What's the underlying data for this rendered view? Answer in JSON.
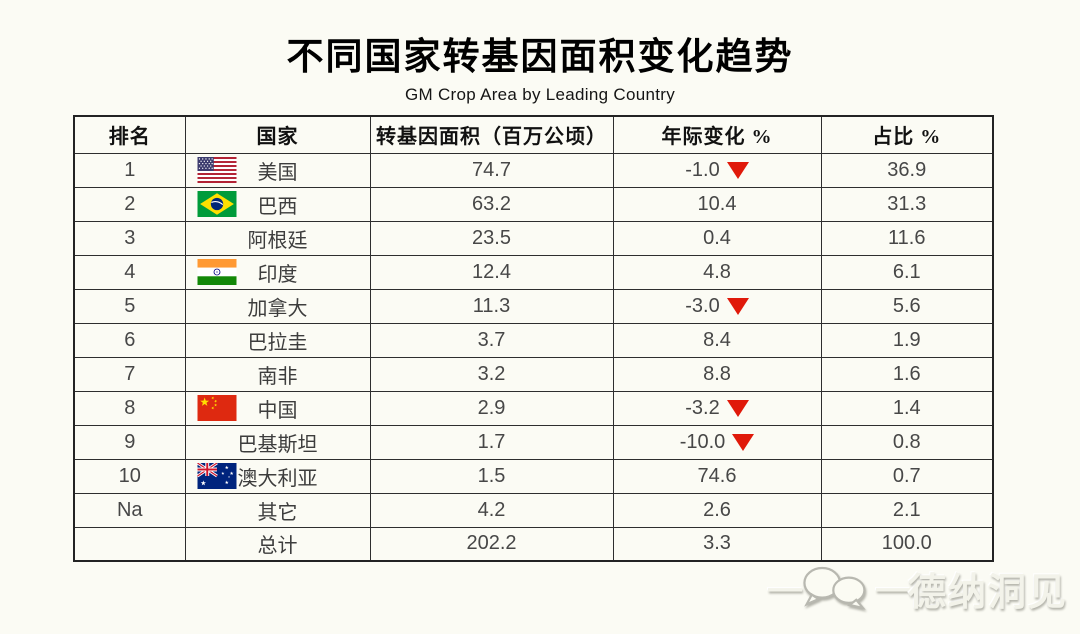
{
  "page": {
    "title": "不同国家转基因面积变化趋势",
    "subtitle": "GM Crop Area by Leading Country",
    "watermark": "德纳洞见",
    "watermark_dash": "—"
  },
  "colors": {
    "background": "#fbfbf4",
    "table_border": "#2e2e2e",
    "triangle_red": "#e0190a",
    "number_text": "#474747"
  },
  "icons": {
    "watermark_icon": "chat-bubbles-icon",
    "negative_marker": "down-triangle-icon"
  },
  "table": {
    "headers": [
      "排名",
      "国家",
      "转基因面积（百万公顷）",
      "年际变化 %",
      "占比 %"
    ],
    "rows": [
      {
        "rank": "1",
        "country": "美国",
        "flag": "us",
        "area": "74.7",
        "change": "-1.0",
        "down": true,
        "share": "36.9"
      },
      {
        "rank": "2",
        "country": "巴西",
        "flag": "br",
        "area": "63.2",
        "change": "10.4",
        "down": false,
        "share": "31.3"
      },
      {
        "rank": "3",
        "country": "阿根廷",
        "flag": null,
        "area": "23.5",
        "change": "0.4",
        "down": false,
        "share": "11.6"
      },
      {
        "rank": "4",
        "country": "印度",
        "flag": "in",
        "area": "12.4",
        "change": "4.8",
        "down": false,
        "share": "6.1"
      },
      {
        "rank": "5",
        "country": "加拿大",
        "flag": null,
        "area": "11.3",
        "change": "-3.0",
        "down": true,
        "share": "5.6"
      },
      {
        "rank": "6",
        "country": "巴拉圭",
        "flag": null,
        "area": "3.7",
        "change": "8.4",
        "down": false,
        "share": "1.9"
      },
      {
        "rank": "7",
        "country": "南非",
        "flag": null,
        "area": "3.2",
        "change": "8.8",
        "down": false,
        "share": "1.6"
      },
      {
        "rank": "8",
        "country": "中国",
        "flag": "cn",
        "area": "2.9",
        "change": "-3.2",
        "down": true,
        "share": "1.4"
      },
      {
        "rank": "9",
        "country": "巴基斯坦",
        "flag": null,
        "area": "1.7",
        "change": "-10.0",
        "down": true,
        "share": "0.8"
      },
      {
        "rank": "10",
        "country": "澳大利亚",
        "flag": "au",
        "area": "1.5",
        "change": "74.6",
        "down": false,
        "share": "0.7"
      },
      {
        "rank": "Na",
        "country": "其它",
        "flag": null,
        "area": "4.2",
        "change": "2.6",
        "down": false,
        "share": "2.1"
      },
      {
        "rank": "",
        "country": "总计",
        "flag": null,
        "area": "202.2",
        "change": "3.3",
        "down": false,
        "share": "100.0"
      }
    ]
  },
  "chart_data": {
    "type": "table",
    "title": "不同国家转基因面积变化趋势",
    "subtitle": "GM Crop Area by Leading Country",
    "columns": [
      "排名",
      "国家",
      "转基因面积（百万公顷）",
      "年际变化 %",
      "占比 %"
    ],
    "rows": [
      [
        "1",
        "美国",
        74.7,
        -1.0,
        36.9
      ],
      [
        "2",
        "巴西",
        63.2,
        10.4,
        31.3
      ],
      [
        "3",
        "阿根廷",
        23.5,
        0.4,
        11.6
      ],
      [
        "4",
        "印度",
        12.4,
        4.8,
        6.1
      ],
      [
        "5",
        "加拿大",
        11.3,
        -3.0,
        5.6
      ],
      [
        "6",
        "巴拉圭",
        3.7,
        8.4,
        1.9
      ],
      [
        "7",
        "南非",
        3.2,
        8.8,
        1.6
      ],
      [
        "8",
        "中国",
        2.9,
        -3.2,
        1.4
      ],
      [
        "9",
        "巴基斯坦",
        1.7,
        -10.0,
        0.8
      ],
      [
        "10",
        "澳大利亚",
        1.5,
        74.6,
        0.7
      ],
      [
        "Na",
        "其它",
        4.2,
        2.6,
        2.1
      ],
      [
        "",
        "总计",
        202.2,
        3.3,
        100.0
      ]
    ],
    "negative_marker": "red down triangle on rows with negative 年际变化",
    "flag_rows": {
      "1": "us",
      "2": "br",
      "4": "in",
      "8": "cn",
      "10": "au"
    }
  }
}
